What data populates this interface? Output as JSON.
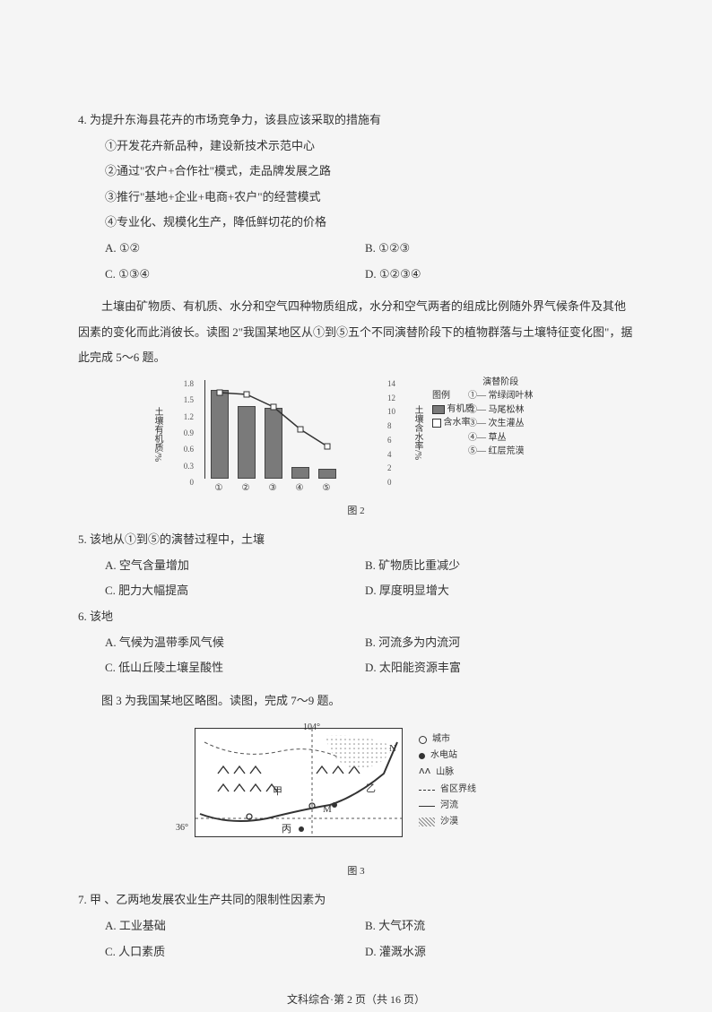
{
  "q4": {
    "stem": "4. 为提升东海县花卉的市场竞争力，该县应该采取的措施有",
    "i1": "①开发花卉新品种，建设新技术示范中心",
    "i2": "②通过\"农户+合作社\"模式，走品牌发展之路",
    "i3": "③推行\"基地+企业+电商+农户\"的经营模式",
    "i4": "④专业化、规模化生产，降低鲜切花的价格",
    "a": "A. ①②",
    "b": "B. ①②③",
    "c": "C. ①③④",
    "d": "D. ①②③④"
  },
  "passage1": "土壤由矿物质、有机质、水分和空气四种物质组成，水分和空气两者的组成比例随外界气候条件及其他因素的变化而此消彼长。读图 2\"我国某地区从①到⑤五个不同演替阶段下的植物群落与土壤特征变化图\"，据此完成 5～6 题。",
  "chart": {
    "left_axis_label": "土壤有机质/%",
    "right_axis_label": "土壤含水率/%",
    "left_ticks": [
      "1.8",
      "1.5",
      "1.2",
      "0.9",
      "0.6",
      "0.3",
      "0"
    ],
    "right_ticks": [
      "14",
      "12",
      "10",
      "8",
      "6",
      "4",
      "2",
      "0"
    ],
    "categories": [
      "①",
      "②",
      "③",
      "④",
      "⑤"
    ],
    "bar_values_pct": [
      88,
      72,
      70,
      10,
      8
    ],
    "bar_color": "#7a7a7a",
    "legend_title": "图例",
    "legend_bar": "有机质",
    "legend_line": "含水率",
    "stage_title": "演替阶段",
    "stages": [
      "①— 常绿阔叶林",
      "②— 马尾松林",
      "③— 次生灌丛",
      "④— 草丛",
      "⑤— 红层荒漠"
    ],
    "caption": "图 2"
  },
  "q5": {
    "stem": "5. 该地从①到⑤的演替过程中，土壤",
    "a": "A. 空气含量增加",
    "b": "B. 矿物质比重减少",
    "c": "C. 肥力大幅提高",
    "d": "D. 厚度明显增大"
  },
  "q6": {
    "stem": "6. 该地",
    "a": "A. 气候为温带季风气候",
    "b": "B. 河流多为内流河",
    "c": "C. 低山丘陵土壤呈酸性",
    "d": "D. 太阳能资源丰富"
  },
  "passage2": "图 3 为我国某地区略图。读图，完成 7～9 题。",
  "map": {
    "lon": "104°",
    "lat": "36°",
    "label_jia": "甲",
    "label_yi": "乙",
    "label_bing": "丙",
    "label_M": "M",
    "label_N": "N",
    "legend": {
      "city": "城市",
      "dam": "水电站",
      "mountain": "山脉",
      "boundary": "省区界线",
      "river": "河流",
      "desert": "沙漠"
    },
    "caption": "图 3"
  },
  "q7": {
    "stem": "7. 甲 、乙两地发展农业生产共同的限制性因素为",
    "a": "A. 工业基础",
    "b": "B. 大气环流",
    "c": "C. 人口素质",
    "d": "D. 灌溉水源"
  },
  "footer": "文科综合·第 2 页（共 16 页）"
}
